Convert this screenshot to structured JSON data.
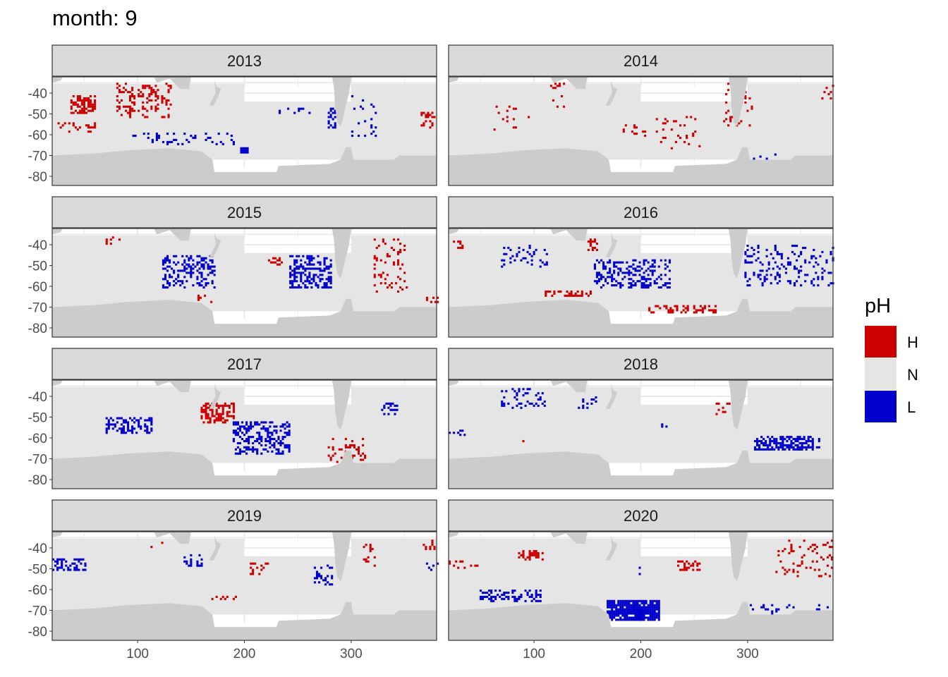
{
  "title": "month: 9",
  "chart_data": {
    "type": "heatmap",
    "title": "month: 9",
    "facets": [
      "2013",
      "2014",
      "2015",
      "2016",
      "2017",
      "2018",
      "2019",
      "2020"
    ],
    "xlim": [
      20,
      380
    ],
    "ylim": [
      -84.4,
      -32.2
    ],
    "x_ticks": [
      100,
      200,
      300
    ],
    "y_ticks": [
      -40,
      -50,
      -60,
      -70,
      -80
    ],
    "grid": true,
    "legend": {
      "title": "pH",
      "position": "right",
      "entries": [
        {
          "label": "H",
          "color": "#cd0000"
        },
        {
          "label": "N",
          "color": "#e5e5e5"
        },
        {
          "label": "L",
          "color": "#0000cd"
        }
      ]
    },
    "land_color": "#cccccc",
    "anomaly_regions": {
      "2013": [
        {
          "class": "H",
          "lon": [
            37,
            60
          ],
          "lat": [
            -50,
            -42
          ],
          "density": 0.6
        },
        {
          "class": "H",
          "lon": [
            80,
            130
          ],
          "lat": [
            -52,
            -36
          ],
          "density": 0.25
        },
        {
          "class": "H",
          "lon": [
            25,
            60
          ],
          "lat": [
            -59,
            -55
          ],
          "density": 0.25
        },
        {
          "class": "H",
          "lon": [
            365,
            378
          ],
          "lat": [
            -58,
            -50
          ],
          "density": 0.35
        },
        {
          "class": "L",
          "lon": [
            196,
            203
          ],
          "lat": [
            -69,
            -67
          ],
          "density": 0.8
        },
        {
          "class": "L",
          "lon": [
            230,
            260
          ],
          "lat": [
            -50,
            -48
          ],
          "density": 0.35
        },
        {
          "class": "L",
          "lon": [
            278,
            285
          ],
          "lat": [
            -58,
            -48
          ],
          "density": 0.35
        },
        {
          "class": "L",
          "lon": [
            95,
            190
          ],
          "lat": [
            -65,
            -60
          ],
          "density": 0.12
        },
        {
          "class": "L",
          "lon": [
            300,
            322
          ],
          "lat": [
            -62,
            -42
          ],
          "density": 0.08
        }
      ],
      "2014": [
        {
          "class": "H",
          "lon": [
            115,
            128
          ],
          "lat": [
            -47,
            -36
          ],
          "density": 0.15
        },
        {
          "class": "H",
          "lon": [
            62,
            95
          ],
          "lat": [
            -59,
            -47
          ],
          "density": 0.1
        },
        {
          "class": "H",
          "lon": [
            181,
            204
          ],
          "lat": [
            -61,
            -56
          ],
          "density": 0.15
        },
        {
          "class": "H",
          "lon": [
            214,
            254
          ],
          "lat": [
            -67,
            -50
          ],
          "density": 0.08
        },
        {
          "class": "H",
          "lon": [
            277,
            303
          ],
          "lat": [
            -56,
            -36
          ],
          "density": 0.15
        },
        {
          "class": "H",
          "lon": [
            369,
            379
          ],
          "lat": [
            -43,
            -37
          ],
          "density": 0.2
        },
        {
          "class": "L",
          "lon": [
            303,
            326
          ],
          "lat": [
            -75,
            -70
          ],
          "density": 0.1
        }
      ],
      "2015": [
        {
          "class": "L",
          "lon": [
            123,
            172
          ],
          "lat": [
            -61,
            -46
          ],
          "density": 0.35
        },
        {
          "class": "L",
          "lon": [
            242,
            281
          ],
          "lat": [
            -61,
            -46
          ],
          "density": 0.45
        },
        {
          "class": "H",
          "lon": [
            321,
            351
          ],
          "lat": [
            -63,
            -38
          ],
          "density": 0.15
        },
        {
          "class": "H",
          "lon": [
            222,
            235
          ],
          "lat": [
            -50,
            -47
          ],
          "density": 0.3
        },
        {
          "class": "H",
          "lon": [
            70,
            83
          ],
          "lat": [
            -40,
            -37
          ],
          "density": 0.3
        },
        {
          "class": "H",
          "lon": [
            156,
            169
          ],
          "lat": [
            -68,
            -65
          ],
          "density": 0.25
        },
        {
          "class": "H",
          "lon": [
            370,
            380
          ],
          "lat": [
            -68,
            -66
          ],
          "density": 0.4
        }
      ],
      "2016": [
        {
          "class": "L",
          "lon": [
            156,
            227
          ],
          "lat": [
            -61,
            -48
          ],
          "density": 0.35
        },
        {
          "class": "L",
          "lon": [
            69,
            112
          ],
          "lat": [
            -51,
            -41
          ],
          "density": 0.2
        },
        {
          "class": "L",
          "lon": [
            297,
            379
          ],
          "lat": [
            -60,
            -41
          ],
          "density": 0.18
        },
        {
          "class": "H",
          "lon": [
            108,
            155
          ],
          "lat": [
            -65,
            -63
          ],
          "density": 0.45
        },
        {
          "class": "H",
          "lon": [
            207,
            270
          ],
          "lat": [
            -73,
            -70
          ],
          "density": 0.35
        },
        {
          "class": "H",
          "lon": [
            148,
            158
          ],
          "lat": [
            -43,
            -37
          ],
          "density": 0.3
        },
        {
          "class": "H",
          "lon": [
            22,
            33
          ],
          "lat": [
            -42,
            -39
          ],
          "density": 0.3
        }
      ],
      "2017": [
        {
          "class": "L",
          "lon": [
            70,
            113
          ],
          "lat": [
            -58,
            -51
          ],
          "density": 0.45
        },
        {
          "class": "L",
          "lon": [
            189,
            242
          ],
          "lat": [
            -68,
            -53
          ],
          "density": 0.4
        },
        {
          "class": "L",
          "lon": [
            328,
            347
          ],
          "lat": [
            -49,
            -44
          ],
          "density": 0.3
        },
        {
          "class": "H",
          "lon": [
            159,
            189
          ],
          "lat": [
            -53,
            -44
          ],
          "density": 0.5
        },
        {
          "class": "H",
          "lon": [
            278,
            314
          ],
          "lat": [
            -75,
            -61
          ],
          "density": 0.15
        }
      ],
      "2018": [
        {
          "class": "L",
          "lon": [
            306,
            366
          ],
          "lat": [
            -66,
            -60
          ],
          "density": 0.6
        },
        {
          "class": "L",
          "lon": [
            69,
            109
          ],
          "lat": [
            -46,
            -37
          ],
          "density": 0.2
        },
        {
          "class": "L",
          "lon": [
            141,
            158
          ],
          "lat": [
            -46,
            -41
          ],
          "density": 0.2
        },
        {
          "class": "L",
          "lon": [
            219,
            224
          ],
          "lat": [
            -55,
            -54
          ],
          "density": 0.5
        },
        {
          "class": "L",
          "lon": [
            20,
            36
          ],
          "lat": [
            -59,
            -57
          ],
          "density": 0.3
        },
        {
          "class": "H",
          "lon": [
            270,
            283
          ],
          "lat": [
            -49,
            -44
          ],
          "density": 0.3
        },
        {
          "class": "H",
          "lon": [
            89,
            95
          ],
          "lat": [
            -62,
            -61
          ],
          "density": 0.5
        }
      ],
      "2019": [
        {
          "class": "L",
          "lon": [
            20,
            50
          ],
          "lat": [
            -51,
            -46
          ],
          "density": 0.45
        },
        {
          "class": "L",
          "lon": [
            143,
            159
          ],
          "lat": [
            -49,
            -44
          ],
          "density": 0.35
        },
        {
          "class": "L",
          "lon": [
            265,
            281
          ],
          "lat": [
            -58,
            -49
          ],
          "density": 0.4
        },
        {
          "class": "L",
          "lon": [
            370,
            380
          ],
          "lat": [
            -51,
            -48
          ],
          "density": 0.4
        },
        {
          "class": "H",
          "lon": [
            205,
            222
          ],
          "lat": [
            -53,
            -48
          ],
          "density": 0.2
        },
        {
          "class": "H",
          "lon": [
            169,
            192
          ],
          "lat": [
            -66,
            -64
          ],
          "density": 0.3
        },
        {
          "class": "H",
          "lon": [
            311,
            321
          ],
          "lat": [
            -49,
            -39
          ],
          "density": 0.2
        },
        {
          "class": "H",
          "lon": [
            367,
            377
          ],
          "lat": [
            -41,
            -37
          ],
          "density": 0.3
        },
        {
          "class": "H",
          "lon": [
            110,
            123
          ],
          "lat": [
            -40,
            -38
          ],
          "density": 0.2
        }
      ],
      "2020": [
        {
          "class": "L",
          "lon": [
            168,
            217
          ],
          "lat": [
            -75,
            -66
          ],
          "density": 0.9
        },
        {
          "class": "L",
          "lon": [
            49,
            105
          ],
          "lat": [
            -66,
            -61
          ],
          "density": 0.35
        },
        {
          "class": "L",
          "lon": [
            300,
            379
          ],
          "lat": [
            -75,
            -68
          ],
          "density": 0.12
        },
        {
          "class": "L",
          "lon": [
            188,
            201
          ],
          "lat": [
            -53,
            -50
          ],
          "density": 0.25
        },
        {
          "class": "H",
          "lon": [
            85,
            108
          ],
          "lat": [
            -46,
            -42
          ],
          "density": 0.4
        },
        {
          "class": "H",
          "lon": [
            234,
            254
          ],
          "lat": [
            -51,
            -47
          ],
          "density": 0.4
        },
        {
          "class": "H",
          "lon": [
            326,
            379
          ],
          "lat": [
            -54,
            -37
          ],
          "density": 0.15
        },
        {
          "class": "H",
          "lon": [
            20,
            49
          ],
          "lat": [
            -50,
            -47
          ],
          "density": 0.2
        }
      ]
    }
  }
}
